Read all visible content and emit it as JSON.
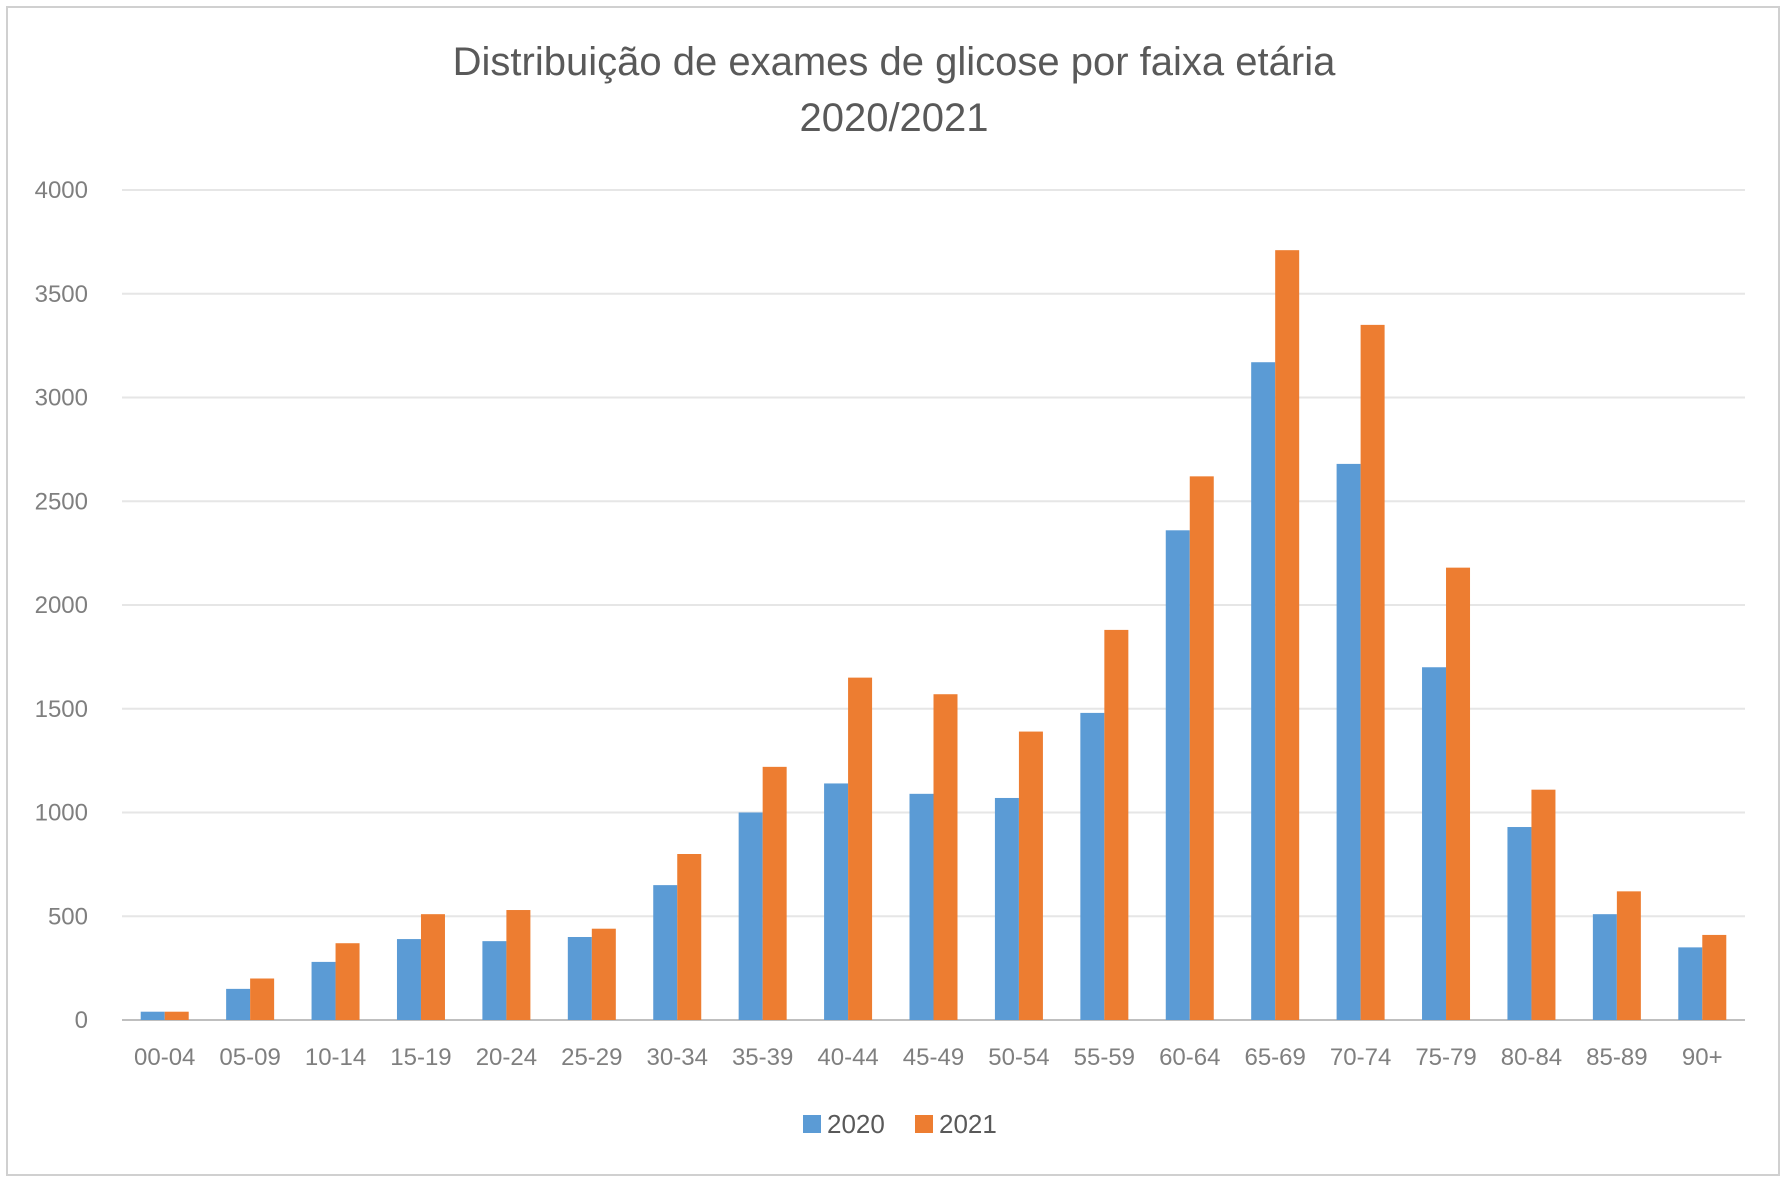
{
  "chart_data": {
    "type": "bar",
    "title": "Distribuição de exames de glicose por faixa etária",
    "subtitle": "2020/2021",
    "xlabel": "",
    "ylabel": "",
    "ylim": [
      0,
      4000
    ],
    "yticks": [
      "0",
      "500",
      "1000",
      "1500",
      "2000",
      "2500",
      "3000",
      "3500",
      "4000"
    ],
    "grid": true,
    "legend_position": "bottom",
    "categories": [
      "00-04",
      "05-09",
      "10-14",
      "15-19",
      "20-24",
      "25-29",
      "30-34",
      "35-39",
      "40-44",
      "45-49",
      "50-54",
      "55-59",
      "60-64",
      "65-69",
      "70-74",
      "75-79",
      "80-84",
      "85-89",
      "90+"
    ],
    "series": [
      {
        "name": "2020",
        "color": "#5b9bd5",
        "values": [
          40,
          150,
          280,
          390,
          380,
          400,
          650,
          1000,
          1140,
          1090,
          1070,
          1480,
          2360,
          3170,
          2680,
          1700,
          930,
          510,
          350
        ]
      },
      {
        "name": "2021",
        "color": "#ed7d31",
        "values": [
          40,
          200,
          370,
          510,
          530,
          440,
          800,
          1220,
          1650,
          1570,
          1390,
          1880,
          2620,
          3710,
          3350,
          2180,
          1110,
          620,
          410
        ]
      }
    ]
  }
}
